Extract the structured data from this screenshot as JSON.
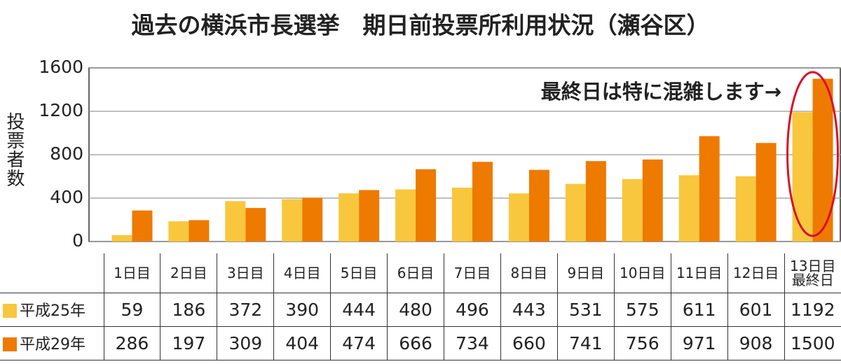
{
  "chart_data": {
    "type": "bar",
    "title": "過去の横浜市長選挙　期日前投票所利用状況（瀬谷区）",
    "y_label": "投票者数",
    "annotation": "最終日は特に混雑します→",
    "categories": [
      "1日目",
      "2日目",
      "3日目",
      "4日目",
      "5日目",
      "6日目",
      "7日目",
      "8日目",
      "9日目",
      "10日目",
      "11日目",
      "12日目",
      "13日目\n最終日"
    ],
    "series": [
      {
        "name": "平成25年",
        "color": "#f8c73e",
        "values": [
          59,
          186,
          372,
          390,
          444,
          480,
          496,
          443,
          531,
          575,
          611,
          601,
          1192
        ]
      },
      {
        "name": "平成29年",
        "color": "#ee7a00",
        "values": [
          286,
          197,
          309,
          404,
          474,
          666,
          734,
          660,
          741,
          756,
          971,
          908,
          1500
        ]
      }
    ],
    "ylim": [
      0,
      1600
    ],
    "yticks": [
      0,
      400,
      800,
      1200,
      1600
    ],
    "grid": true
  }
}
